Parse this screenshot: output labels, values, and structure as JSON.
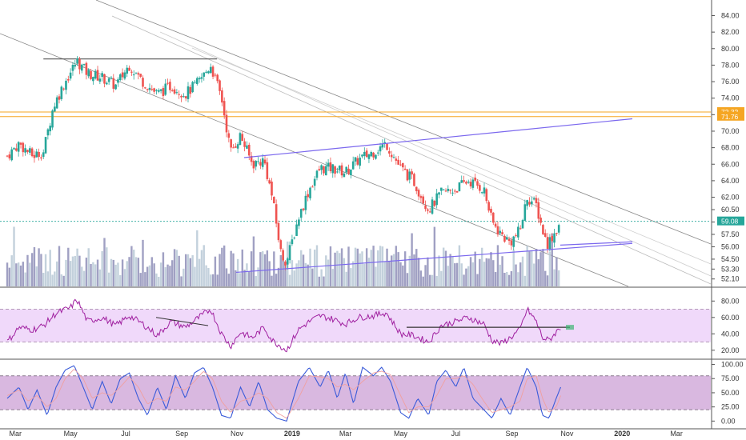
{
  "chart_data": [
    {
      "type": "candlestick",
      "panel": "price",
      "yticks": [
        52.1,
        53.3,
        54.5,
        56.0,
        57.5,
        59.0,
        60.5,
        62.0,
        64.0,
        66.0,
        68.0,
        70.0,
        72.0,
        74.0,
        76.0,
        78.0,
        80.0,
        82.0,
        84.0
      ],
      "ytick_labels": [
        "52.10",
        "53.30",
        "54.50",
        "56.00",
        "57.50",
        "59.00",
        "60.50",
        "62.00",
        "64.00",
        "66.00",
        "68.00",
        "70.00",
        "72.00",
        "74.00",
        "76.00",
        "78.00",
        "80.00",
        "82.00",
        "84.00"
      ],
      "ylim": [
        51.2,
        85.5
      ],
      "last_price": {
        "value": 59.08,
        "label": "59.08",
        "color": "#26a69a"
      },
      "horizontal_levels": [
        {
          "value": 72.32,
          "label": "72.32",
          "color": "#f5a623"
        },
        {
          "value": 71.76,
          "label": "71.76",
          "color": "#f5a623"
        }
      ],
      "resistance_line": {
        "value": 78.75,
        "color": "#555555",
        "from": "2018-04",
        "to": "2018-10"
      },
      "candle_colors": {
        "up": "#26a69a",
        "down": "#ef5350"
      },
      "price_path": [
        [
          "2018-02-20",
          67.0
        ],
        [
          "2018-03-05",
          68.5
        ],
        [
          "2018-03-20",
          67.0
        ],
        [
          "2018-04-01",
          67.5
        ],
        [
          "2018-04-12",
          73.0
        ],
        [
          "2018-04-25",
          76.0
        ],
        [
          "2018-05-08",
          78.5
        ],
        [
          "2018-05-20",
          77.0
        ],
        [
          "2018-06-05",
          76.5
        ],
        [
          "2018-06-20",
          75.5
        ],
        [
          "2018-07-05",
          78.0
        ],
        [
          "2018-07-20",
          76.0
        ],
        [
          "2018-08-05",
          74.5
        ],
        [
          "2018-08-20",
          75.5
        ],
        [
          "2018-09-05",
          74.5
        ],
        [
          "2018-09-20",
          76.0
        ],
        [
          "2018-10-03",
          78.0
        ],
        [
          "2018-10-15",
          74.0
        ],
        [
          "2018-10-25",
          67.5
        ],
        [
          "2018-11-05",
          69.5
        ],
        [
          "2018-11-18",
          66.0
        ],
        [
          "2018-12-01",
          66.5
        ],
        [
          "2018-12-10",
          62.0
        ],
        [
          "2018-12-20",
          55.0
        ],
        [
          "2018-12-26",
          54.2
        ],
        [
          "2019-01-08",
          59.5
        ],
        [
          "2019-01-20",
          63.0
        ],
        [
          "2019-02-01",
          65.5
        ],
        [
          "2019-02-15",
          65.5
        ],
        [
          "2019-03-01",
          65.0
        ],
        [
          "2019-03-15",
          66.5
        ],
        [
          "2019-04-01",
          67.5
        ],
        [
          "2019-04-15",
          68.5
        ],
        [
          "2019-05-01",
          65.5
        ],
        [
          "2019-05-15",
          64.0
        ],
        [
          "2019-06-01",
          60.5
        ],
        [
          "2019-06-15",
          62.5
        ],
        [
          "2019-07-01",
          63.0
        ],
        [
          "2019-07-15",
          64.0
        ],
        [
          "2019-08-01",
          63.0
        ],
        [
          "2019-08-10",
          59.0
        ],
        [
          "2019-08-20",
          57.5
        ],
        [
          "2019-08-30",
          56.5
        ],
        [
          "2019-09-10",
          58.0
        ],
        [
          "2019-09-18",
          62.0
        ],
        [
          "2019-09-28",
          61.0
        ],
        [
          "2019-10-05",
          58.0
        ],
        [
          "2019-10-10",
          56.3
        ],
        [
          "2019-10-20",
          58.0
        ],
        [
          "2019-10-25",
          59.08
        ]
      ],
      "xticks": [
        {
          "date": "2018-03-01",
          "label": "Mar",
          "bold": false
        },
        {
          "date": "2018-05-01",
          "label": "May",
          "bold": false
        },
        {
          "date": "2018-07-01",
          "label": "Jul",
          "bold": false
        },
        {
          "date": "2018-09-01",
          "label": "Sep",
          "bold": false
        },
        {
          "date": "2018-11-01",
          "label": "Nov",
          "bold": false
        },
        {
          "date": "2019-01-01",
          "label": "2019",
          "bold": true
        },
        {
          "date": "2019-03-01",
          "label": "Mar",
          "bold": false
        },
        {
          "date": "2019-05-01",
          "label": "May",
          "bold": false
        },
        {
          "date": "2019-07-01",
          "label": "Jul",
          "bold": false
        },
        {
          "date": "2019-09-01",
          "label": "Sep",
          "bold": false
        },
        {
          "date": "2019-11-01",
          "label": "Nov",
          "bold": false
        },
        {
          "date": "2020-01-01",
          "label": "2020",
          "bold": true
        },
        {
          "date": "2020-03-01",
          "label": "Mar",
          "bold": false
        }
      ],
      "x_range": [
        "2018-02-12",
        "2020-04-08"
      ]
    },
    {
      "type": "line",
      "panel": "rsi",
      "yticks": [
        20.0,
        40.0,
        60.0,
        80.0
      ],
      "ytick_labels": [
        "20.00",
        "40.00",
        "60.00",
        "80.00"
      ],
      "ylim": [
        12,
        92
      ],
      "band": [
        30,
        70
      ],
      "band_color": "#f0d9fa",
      "line_color": "#a020a0",
      "last_value": 48,
      "rsi_path": [
        [
          "2018-02-20",
          30
        ],
        [
          "2018-03-05",
          48
        ],
        [
          "2018-03-20",
          45
        ],
        [
          "2018-04-01",
          50
        ],
        [
          "2018-04-15",
          65
        ],
        [
          "2018-05-01",
          72
        ],
        [
          "2018-05-08",
          82
        ],
        [
          "2018-05-20",
          55
        ],
        [
          "2018-06-05",
          60
        ],
        [
          "2018-06-20",
          50
        ],
        [
          "2018-07-05",
          62
        ],
        [
          "2018-07-20",
          52
        ],
        [
          "2018-08-05",
          38
        ],
        [
          "2018-08-20",
          55
        ],
        [
          "2018-09-05",
          48
        ],
        [
          "2018-09-20",
          60
        ],
        [
          "2018-10-03",
          70
        ],
        [
          "2018-10-15",
          40
        ],
        [
          "2018-10-25",
          25
        ],
        [
          "2018-11-05",
          42
        ],
        [
          "2018-11-18",
          35
        ],
        [
          "2018-12-01",
          48
        ],
        [
          "2018-12-10",
          32
        ],
        [
          "2018-12-26",
          20
        ],
        [
          "2019-01-08",
          45
        ],
        [
          "2019-01-20",
          55
        ],
        [
          "2019-02-01",
          62
        ],
        [
          "2019-02-15",
          58
        ],
        [
          "2019-03-01",
          52
        ],
        [
          "2019-03-15",
          60
        ],
        [
          "2019-04-01",
          62
        ],
        [
          "2019-04-15",
          66
        ],
        [
          "2019-05-01",
          40
        ],
        [
          "2019-05-15",
          38
        ],
        [
          "2019-06-01",
          30
        ],
        [
          "2019-06-15",
          50
        ],
        [
          "2019-07-01",
          55
        ],
        [
          "2019-07-15",
          60
        ],
        [
          "2019-08-01",
          52
        ],
        [
          "2019-08-10",
          32
        ],
        [
          "2019-08-20",
          28
        ],
        [
          "2019-08-30",
          35
        ],
        [
          "2019-09-10",
          45
        ],
        [
          "2019-09-18",
          70
        ],
        [
          "2019-09-28",
          55
        ],
        [
          "2019-10-05",
          35
        ],
        [
          "2019-10-12",
          32
        ],
        [
          "2019-10-20",
          42
        ],
        [
          "2019-10-25",
          48
        ]
      ]
    },
    {
      "type": "line",
      "panel": "stochastic",
      "yticks": [
        0.0,
        25.0,
        50.0,
        75.0,
        100.0
      ],
      "ytick_labels": [
        "0.00",
        "25.00",
        "50.00",
        "75.00",
        "100.00"
      ],
      "ylim": [
        -8,
        105
      ],
      "band": [
        20,
        80
      ],
      "band_color": "#d9b8e0",
      "series": [
        {
          "color": "#3a5bd9",
          "values": [
            [
              "2018-02-20",
              40
            ],
            [
              "2018-03-05",
              60
            ],
            [
              "2018-03-15",
              20
            ],
            [
              "2018-03-25",
              55
            ],
            [
              "2018-04-05",
              10
            ],
            [
              "2018-04-15",
              60
            ],
            [
              "2018-04-25",
              90
            ],
            [
              "2018-05-05",
              98
            ],
            [
              "2018-05-15",
              60
            ],
            [
              "2018-05-25",
              20
            ],
            [
              "2018-06-05",
              70
            ],
            [
              "2018-06-15",
              30
            ],
            [
              "2018-06-25",
              75
            ],
            [
              "2018-07-05",
              85
            ],
            [
              "2018-07-15",
              40
            ],
            [
              "2018-07-25",
              10
            ],
            [
              "2018-08-05",
              60
            ],
            [
              "2018-08-15",
              20
            ],
            [
              "2018-08-25",
              80
            ],
            [
              "2018-09-05",
              40
            ],
            [
              "2018-09-15",
              85
            ],
            [
              "2018-09-25",
              95
            ],
            [
              "2018-10-05",
              60
            ],
            [
              "2018-10-15",
              10
            ],
            [
              "2018-10-25",
              5
            ],
            [
              "2018-11-05",
              60
            ],
            [
              "2018-11-15",
              25
            ],
            [
              "2018-11-25",
              70
            ],
            [
              "2018-12-05",
              20
            ],
            [
              "2018-12-15",
              5
            ],
            [
              "2018-12-26",
              0
            ],
            [
              "2019-01-08",
              70
            ],
            [
              "2019-01-20",
              95
            ],
            [
              "2019-02-01",
              60
            ],
            [
              "2019-02-10",
              90
            ],
            [
              "2019-02-20",
              40
            ],
            [
              "2019-03-01",
              85
            ],
            [
              "2019-03-10",
              30
            ],
            [
              "2019-03-20",
              95
            ],
            [
              "2019-04-01",
              80
            ],
            [
              "2019-04-10",
              95
            ],
            [
              "2019-04-20",
              70
            ],
            [
              "2019-05-01",
              15
            ],
            [
              "2019-05-10",
              5
            ],
            [
              "2019-05-20",
              40
            ],
            [
              "2019-06-01",
              10
            ],
            [
              "2019-06-10",
              70
            ],
            [
              "2019-06-20",
              90
            ],
            [
              "2019-07-01",
              60
            ],
            [
              "2019-07-10",
              95
            ],
            [
              "2019-07-20",
              40
            ],
            [
              "2019-08-01",
              20
            ],
            [
              "2019-08-10",
              5
            ],
            [
              "2019-08-20",
              40
            ],
            [
              "2019-08-30",
              10
            ],
            [
              "2019-09-10",
              60
            ],
            [
              "2019-09-18",
              95
            ],
            [
              "2019-09-28",
              60
            ],
            [
              "2019-10-05",
              10
            ],
            [
              "2019-10-12",
              5
            ],
            [
              "2019-10-20",
              40
            ],
            [
              "2019-10-25",
              60
            ]
          ]
        },
        {
          "color": "#f0a0a0",
          "values": [
            [
              "2018-02-20",
              45
            ],
            [
              "2018-03-05",
              55
            ],
            [
              "2018-03-15",
              35
            ],
            [
              "2018-03-25",
              45
            ],
            [
              "2018-04-05",
              25
            ],
            [
              "2018-04-15",
              40
            ],
            [
              "2018-04-25",
              75
            ],
            [
              "2018-05-05",
              92
            ],
            [
              "2018-05-15",
              75
            ],
            [
              "2018-05-25",
              40
            ],
            [
              "2018-06-05",
              50
            ],
            [
              "2018-06-15",
              45
            ],
            [
              "2018-06-25",
              60
            ],
            [
              "2018-07-05",
              78
            ],
            [
              "2018-07-15",
              60
            ],
            [
              "2018-07-25",
              30
            ],
            [
              "2018-08-05",
              40
            ],
            [
              "2018-08-15",
              35
            ],
            [
              "2018-08-25",
              60
            ],
            [
              "2018-09-05",
              55
            ],
            [
              "2018-09-15",
              70
            ],
            [
              "2018-09-25",
              88
            ],
            [
              "2018-10-05",
              75
            ],
            [
              "2018-10-15",
              35
            ],
            [
              "2018-10-25",
              15
            ],
            [
              "2018-11-05",
              35
            ],
            [
              "2018-11-15",
              40
            ],
            [
              "2018-11-25",
              50
            ],
            [
              "2018-12-05",
              40
            ],
            [
              "2018-12-15",
              15
            ],
            [
              "2018-12-26",
              5
            ],
            [
              "2019-01-08",
              40
            ],
            [
              "2019-01-20",
              80
            ],
            [
              "2019-02-01",
              78
            ],
            [
              "2019-02-10",
              75
            ],
            [
              "2019-02-20",
              60
            ],
            [
              "2019-03-01",
              65
            ],
            [
              "2019-03-10",
              55
            ],
            [
              "2019-03-20",
              70
            ],
            [
              "2019-04-01",
              85
            ],
            [
              "2019-04-10",
              88
            ],
            [
              "2019-04-20",
              82
            ],
            [
              "2019-05-01",
              45
            ],
            [
              "2019-05-10",
              15
            ],
            [
              "2019-05-20",
              25
            ],
            [
              "2019-06-01",
              25
            ],
            [
              "2019-06-10",
              45
            ],
            [
              "2019-06-20",
              75
            ],
            [
              "2019-07-01",
              75
            ],
            [
              "2019-07-10",
              80
            ],
            [
              "2019-07-20",
              65
            ],
            [
              "2019-08-01",
              35
            ],
            [
              "2019-08-10",
              15
            ],
            [
              "2019-08-20",
              20
            ],
            [
              "2019-08-30",
              25
            ],
            [
              "2019-09-10",
              35
            ],
            [
              "2019-09-18",
              75
            ],
            [
              "2019-09-28",
              80
            ],
            [
              "2019-10-05",
              40
            ],
            [
              "2019-10-12",
              15
            ],
            [
              "2019-10-20",
              25
            ],
            [
              "2019-10-25",
              45
            ]
          ]
        }
      ]
    }
  ]
}
